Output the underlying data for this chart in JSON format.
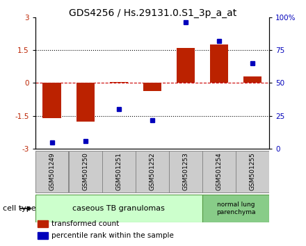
{
  "title": "GDS4256 / Hs.29131.0.S1_3p_a_at",
  "samples": [
    "GSM501249",
    "GSM501250",
    "GSM501251",
    "GSM501252",
    "GSM501253",
    "GSM501254",
    "GSM501255"
  ],
  "transformed_count": [
    -1.6,
    -1.75,
    0.05,
    -0.35,
    1.6,
    1.75,
    0.3
  ],
  "percentile_rank": [
    5,
    6,
    30,
    22,
    96,
    82,
    65
  ],
  "ylim_left": [
    -3,
    3
  ],
  "ylim_right": [
    0,
    100
  ],
  "yticks_left": [
    -3,
    -1.5,
    0,
    1.5,
    3
  ],
  "ytick_labels_left": [
    "-3",
    "-1.5",
    "0",
    "1.5",
    "3"
  ],
  "yticks_right": [
    0,
    25,
    50,
    75,
    100
  ],
  "ytick_labels_right": [
    "0",
    "25",
    "50",
    "75",
    "100%"
  ],
  "bar_color": "#bb2200",
  "dot_color": "#0000bb",
  "zero_line_color": "#cc0000",
  "hline_color": "#000000",
  "group1_label": "caseous TB granulomas",
  "group2_label": "normal lung\nparenchyma",
  "group1_indices": [
    0,
    1,
    2,
    3,
    4
  ],
  "group2_indices": [
    5,
    6
  ],
  "cell_type_label": "cell type",
  "legend_bar_label": "transformed count",
  "legend_dot_label": "percentile rank within the sample",
  "group1_color": "#ccffcc",
  "group2_color": "#88cc88",
  "sample_box_color": "#cccccc",
  "sample_box_edge": "#888888",
  "bar_width": 0.55,
  "title_fontsize": 10,
  "tick_fontsize": 7.5,
  "sample_fontsize": 6.5,
  "group_fontsize": 8,
  "legend_fontsize": 7.5,
  "cell_type_fontsize": 8
}
